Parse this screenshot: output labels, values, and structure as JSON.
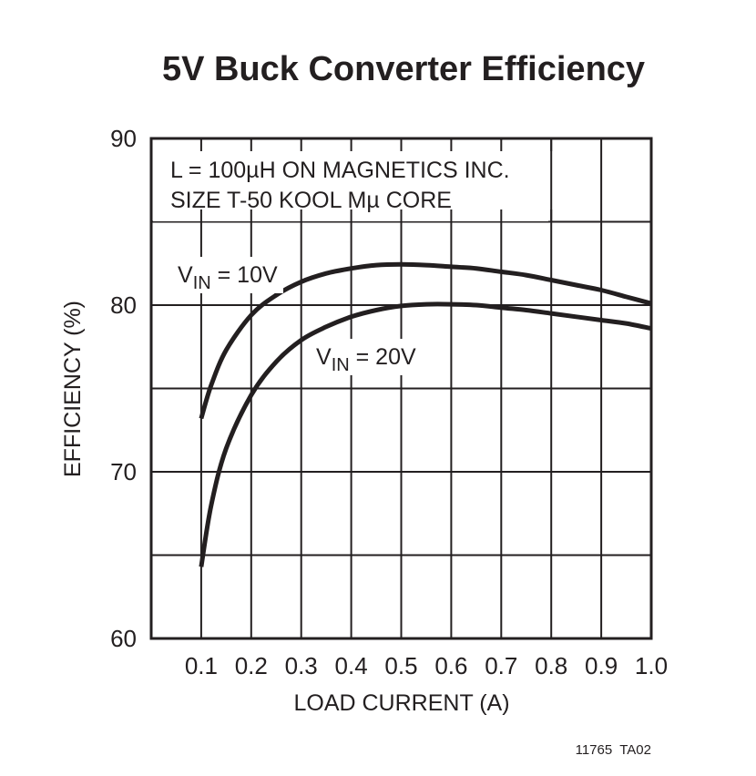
{
  "chart_data": {
    "type": "line",
    "title": "5V Buck Converter Efficiency",
    "xlabel": "LOAD CURRENT (A)",
    "ylabel": "EFFICIENCY (%)",
    "xlim": [
      0,
      1.0
    ],
    "ylim": [
      60,
      90
    ],
    "x_ticks": [
      "0.1",
      "0.2",
      "0.3",
      "0.4",
      "0.5",
      "0.6",
      "0.7",
      "0.8",
      "0.9",
      "1.0"
    ],
    "y_ticks": [
      "60",
      "70",
      "80",
      "90"
    ],
    "grid": true,
    "annotation": [
      "L = 100µH ON MAGNETICS INC.",
      "SIZE T-50 KOOL Mµ CORE"
    ],
    "series": [
      {
        "name": "VIN = 10V",
        "label_main": "V",
        "label_sub": "IN",
        "label_rest": " = 10V",
        "x": [
          0.1,
          0.12,
          0.15,
          0.2,
          0.25,
          0.3,
          0.35,
          0.4,
          0.45,
          0.5,
          0.55,
          0.6,
          0.65,
          0.7,
          0.75,
          0.8,
          0.85,
          0.9,
          0.95,
          1.0
        ],
        "values": [
          73.2,
          75.2,
          77.3,
          79.4,
          80.6,
          81.4,
          81.9,
          82.2,
          82.4,
          82.45,
          82.4,
          82.3,
          82.2,
          82.0,
          81.8,
          81.5,
          81.2,
          80.9,
          80.5,
          80.1
        ]
      },
      {
        "name": "VIN = 20V",
        "label_main": "V",
        "label_sub": "IN",
        "label_rest": " = 20V",
        "x": [
          0.1,
          0.12,
          0.15,
          0.2,
          0.25,
          0.3,
          0.35,
          0.4,
          0.45,
          0.5,
          0.55,
          0.6,
          0.65,
          0.7,
          0.75,
          0.8,
          0.85,
          0.9,
          0.95,
          1.0
        ],
        "values": [
          64.3,
          68.0,
          71.4,
          74.6,
          76.6,
          77.9,
          78.7,
          79.3,
          79.7,
          79.95,
          80.05,
          80.05,
          80.0,
          79.85,
          79.7,
          79.5,
          79.3,
          79.1,
          78.9,
          78.6
        ]
      }
    ],
    "footer": "11765  TA02"
  }
}
